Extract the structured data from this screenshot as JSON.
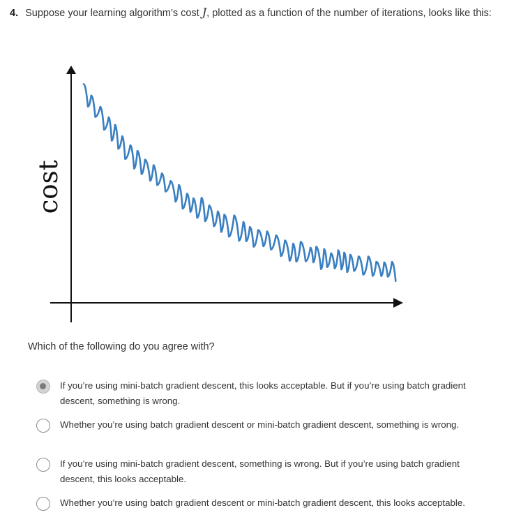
{
  "question": {
    "number": "4.",
    "text_before": "Suppose your learning algorithm’s cost",
    "variable": "J",
    "text_after": ", plotted as a function of the number of iterations, looks like this:"
  },
  "figure": {
    "ylabel": "cost",
    "line_color": "#3a7fc1",
    "axis_color": "#111111"
  },
  "prompt": "Which of the following do you agree with?",
  "options": [
    {
      "text": "If you’re using mini-batch gradient descent, this looks acceptable. But if you’re using batch gradient descent, something is wrong.",
      "selected": true
    },
    {
      "text": "Whether you’re using batch gradient descent or mini-batch gradient descent, something is wrong.",
      "selected": false
    },
    {
      "text": "If you’re using mini-batch gradient descent, something is wrong. But if you’re using batch gradient descent, this looks acceptable.",
      "selected": false
    },
    {
      "text": "Whether you’re using batch gradient descent or mini-batch gradient descent, this looks acceptable.",
      "selected": false
    }
  ]
}
